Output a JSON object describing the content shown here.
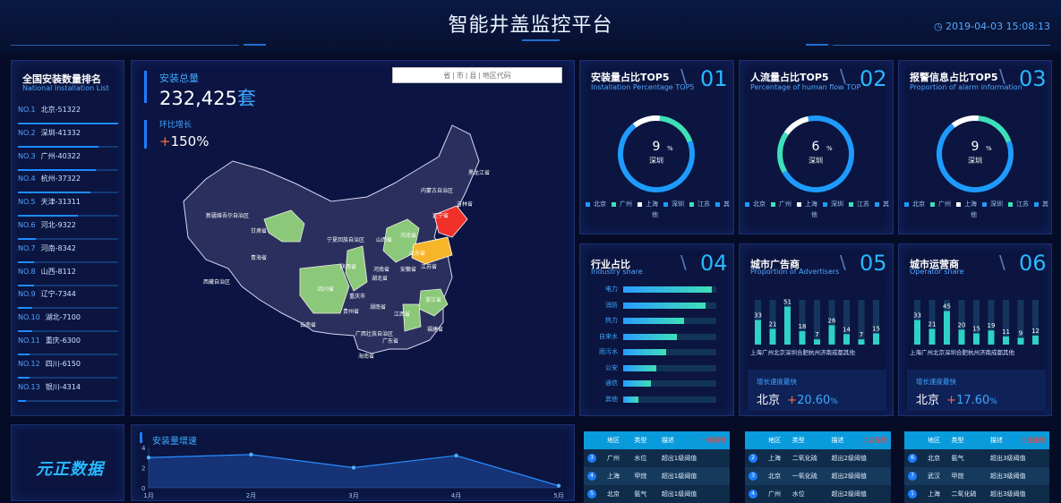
{
  "header": {
    "title": "智能井盖监控平台",
    "datetime": "2019-04-03 15:08:13"
  },
  "ranking": {
    "title": "全国安装数量排名",
    "subtitle": "National Installation List",
    "items": [
      {
        "no": "NO.1",
        "label": "北京-51322",
        "pct": 1.0
      },
      {
        "no": "NO.2",
        "label": "深圳-41332",
        "pct": 0.8
      },
      {
        "no": "NO.3",
        "label": "广州-40322",
        "pct": 0.78
      },
      {
        "no": "NO.4",
        "label": "杭州-37322",
        "pct": 0.72
      },
      {
        "no": "NO.5",
        "label": "天津-31311",
        "pct": 0.6
      },
      {
        "no": "NO.6",
        "label": "河北-9322",
        "pct": 0.18
      },
      {
        "no": "NO.7",
        "label": "河南-8342",
        "pct": 0.16
      },
      {
        "no": "NO.8",
        "label": "山西-8112",
        "pct": 0.16
      },
      {
        "no": "NO.9",
        "label": "辽宁-7344",
        "pct": 0.14
      },
      {
        "no": "NO.10",
        "label": "湖北-7100",
        "pct": 0.14
      },
      {
        "no": "NO.11",
        "label": "重庆-6300",
        "pct": 0.12
      },
      {
        "no": "NO.12",
        "label": "四川-6150",
        "pct": 0.12
      },
      {
        "no": "NO.13",
        "label": "银川-4314",
        "pct": 0.08
      }
    ]
  },
  "mapPanel": {
    "total_label": "安装总量",
    "total_value": "232,425",
    "total_unit": "套",
    "growth_label": "环比增长",
    "growth_value": "150%",
    "search_placeholder": "省 | 市 | 县 | 地区代码",
    "provinces": [
      "黑龙江省",
      "吉林省",
      "辽宁省",
      "内蒙古自治区",
      "新疆维吾尔自治区",
      "西藏自治区",
      "青海省",
      "甘肃省",
      "宁夏回族自治区",
      "陕西省",
      "山西省",
      "河北省",
      "山东省",
      "河南省",
      "四川省",
      "重庆市",
      "湖北省",
      "安徽省",
      "江苏省",
      "湖南省",
      "江西省",
      "浙江省",
      "贵州省",
      "云南省",
      "广西壮族自治区",
      "广东省",
      "福建省",
      "海南省"
    ]
  },
  "cards": [
    {
      "title": "安装量占比TOP5",
      "subtitle": "Installation Percentage TOP5",
      "num": "01",
      "pct": "9",
      "unit": "%",
      "city": "深圳"
    },
    {
      "title": "人流量占比TOP5",
      "subtitle": "Percentage of human flow TOP",
      "num": "02",
      "pct": "6",
      "unit": "%",
      "city": "深圳"
    },
    {
      "title": "报警信息占比TOP5",
      "subtitle": "Proportion of alarm information",
      "num": "03",
      "pct": "9",
      "unit": "%",
      "city": "深圳"
    }
  ],
  "donut_legend": [
    "北京",
    "广州",
    "上海",
    "深圳",
    "江苏",
    "其他"
  ],
  "legend_colors": [
    "#1e9bff",
    "#3ee0b8",
    "#ffffff",
    "#1e9bff",
    "#3ee0b8",
    "#1e9bff"
  ],
  "industry": {
    "title": "行业占比",
    "subtitle": "Industry share",
    "num": "04",
    "items": [
      {
        "label": "电力",
        "pct": 0.95
      },
      {
        "label": "消防",
        "pct": 0.88
      },
      {
        "label": "热力",
        "pct": 0.65
      },
      {
        "label": "自来水",
        "pct": 0.58
      },
      {
        "label": "雨污水",
        "pct": 0.46
      },
      {
        "label": "公安",
        "pct": 0.36
      },
      {
        "label": "通信",
        "pct": 0.3
      },
      {
        "label": "其他",
        "pct": 0.16
      }
    ]
  },
  "advertisers": {
    "title": "城市广告商",
    "subtitle": "Proportion of Advertisers",
    "num": "05",
    "values": [
      33,
      21,
      51,
      18,
      7,
      26,
      14,
      7,
      15
    ],
    "cities": "上海广州北京深圳合肥杭州济南成都其他",
    "growth_label": "增长速度最快",
    "growth_city": "北京",
    "growth_value": "20.60",
    "growth_unit": "%"
  },
  "operators": {
    "title": "城市运营商",
    "subtitle": "Operator share",
    "num": "06",
    "values": [
      33,
      21,
      45,
      20,
      15,
      19,
      11,
      9,
      12
    ],
    "cities": "上海广州北京深圳合肥杭州济南成都其他",
    "growth_label": "增长速度最快",
    "growth_city": "北京",
    "growth_value": "17.60",
    "growth_unit": "%"
  },
  "logo": {
    "text": "元正数据"
  },
  "chart_data": {
    "type": "area",
    "title": "安装量增速",
    "categories": [
      "1月",
      "2月",
      "3月",
      "4月",
      "5月"
    ],
    "values": [
      3,
      3.3,
      2,
      3.2,
      0.2
    ],
    "ylim": [
      0,
      4
    ],
    "yticks": [
      "4",
      "2",
      "0"
    ]
  },
  "alarm_tables": [
    {
      "headers": [
        "地区",
        "类型",
        "描述",
        "一级报警"
      ],
      "rows": [
        {
          "idx": "3",
          "region": "广州",
          "type": "水位",
          "desc": "超出1级阈值"
        },
        {
          "idx": "4",
          "region": "上海",
          "type": "甲烷",
          "desc": "超出1级阈值"
        },
        {
          "idx": "5",
          "region": "北京",
          "type": "氨气",
          "desc": "超出1级阈值"
        }
      ]
    },
    {
      "headers": [
        "地区",
        "类型",
        "描述",
        "二级报警"
      ],
      "rows": [
        {
          "idx": "2",
          "region": "上海",
          "type": "二氧化硫",
          "desc": "超出2级阈值"
        },
        {
          "idx": "3",
          "region": "北京",
          "type": "一氧化硫",
          "desc": "超出2级阈值"
        },
        {
          "idx": "4",
          "region": "广州",
          "type": "水位",
          "desc": "超出2级阈值"
        }
      ]
    },
    {
      "headers": [
        "地区",
        "类型",
        "描述",
        "三级报警"
      ],
      "rows": [
        {
          "idx": "6",
          "region": "北京",
          "type": "氨气",
          "desc": "超出3级阈值"
        },
        {
          "idx": "7",
          "region": "武汉",
          "type": "甲烷",
          "desc": "超出3级阈值"
        },
        {
          "idx": "1",
          "region": "上海",
          "type": "二氧化硫",
          "desc": "超出3级阈值"
        }
      ]
    }
  ]
}
